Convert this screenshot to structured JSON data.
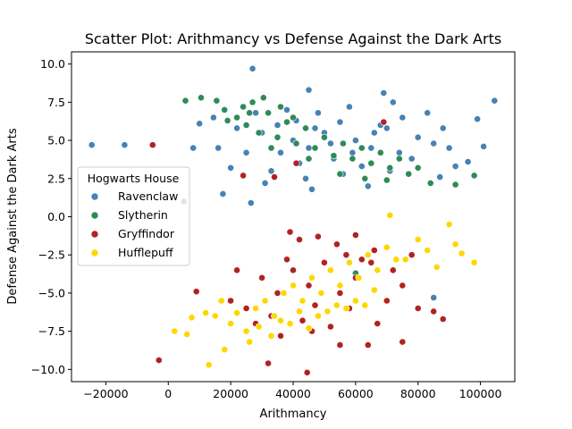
{
  "chart_data": {
    "type": "scatter",
    "title": "Scatter Plot: Arithmancy vs Defense Against the Dark Arts",
    "xlabel": "Arithmancy",
    "ylabel": "Defense Against the Dark Arts",
    "xlim": [
      -31000,
      111000
    ],
    "ylim": [
      -10.8,
      10.8
    ],
    "x_ticks": [
      -20000,
      0,
      20000,
      40000,
      60000,
      80000,
      100000
    ],
    "x_tick_labels": [
      "−20000",
      "0",
      "20000",
      "40000",
      "60000",
      "80000",
      "100000"
    ],
    "y_ticks": [
      -10.0,
      -7.5,
      -5.0,
      -2.5,
      0.0,
      2.5,
      5.0,
      7.5,
      10.0
    ],
    "y_tick_labels": [
      "−10.0",
      "−7.5",
      "−5.0",
      "−2.5",
      "0.0",
      "2.5",
      "5.0",
      "7.5",
      "10.0"
    ],
    "grid": false,
    "legend": {
      "title": "Hogwarts House",
      "placement": "center-left"
    },
    "series": [
      {
        "name": "Ravenclaw",
        "color": "#4682b4",
        "points": [
          [
            -24500,
            4.7
          ],
          [
            -14000,
            4.7
          ],
          [
            27000,
            9.7
          ],
          [
            45000,
            8.3
          ],
          [
            104500,
            7.6
          ],
          [
            101000,
            4.6
          ],
          [
            99000,
            6.4
          ],
          [
            96000,
            3.6
          ],
          [
            17500,
            1.5
          ],
          [
            26500,
            0.9
          ],
          [
            14500,
            6.5
          ],
          [
            10000,
            6.1
          ],
          [
            8000,
            4.5
          ],
          [
            5000,
            1.0
          ],
          [
            92000,
            3.3
          ],
          [
            30000,
            5.5
          ],
          [
            35000,
            6.0
          ],
          [
            40000,
            5.0
          ],
          [
            45000,
            4.5
          ],
          [
            50000,
            5.5
          ],
          [
            55000,
            6.2
          ],
          [
            60000,
            5.0
          ],
          [
            65000,
            4.5
          ],
          [
            70000,
            5.8
          ],
          [
            75000,
            6.5
          ],
          [
            80000,
            5.2
          ],
          [
            85000,
            4.8
          ],
          [
            88000,
            5.8
          ],
          [
            25000,
            4.2
          ],
          [
            22000,
            5.8
          ],
          [
            38000,
            7.0
          ],
          [
            42000,
            3.5
          ],
          [
            48000,
            6.8
          ],
          [
            53000,
            3.8
          ],
          [
            58000,
            7.2
          ],
          [
            62000,
            3.3
          ],
          [
            68000,
            6.0
          ],
          [
            72000,
            7.5
          ],
          [
            78000,
            3.8
          ],
          [
            83000,
            6.8
          ],
          [
            33000,
            3.0
          ],
          [
            44000,
            2.5
          ],
          [
            56000,
            2.8
          ],
          [
            64000,
            2.0
          ],
          [
            87000,
            2.6
          ],
          [
            36000,
            4.2
          ],
          [
            47000,
            5.8
          ],
          [
            52000,
            4.8
          ],
          [
            66000,
            5.5
          ],
          [
            74000,
            4.2
          ],
          [
            28000,
            6.8
          ],
          [
            41000,
            6.3
          ],
          [
            59000,
            4.2
          ],
          [
            71000,
            3.0
          ],
          [
            16000,
            4.5
          ],
          [
            20000,
            3.2
          ],
          [
            90000,
            4.5
          ],
          [
            46000,
            1.8
          ],
          [
            69000,
            8.1
          ],
          [
            31000,
            2.2
          ],
          [
            85000,
            -5.3
          ]
        ]
      },
      {
        "name": "Slytherin",
        "color": "#2e8b57",
        "points": [
          [
            5500,
            7.6
          ],
          [
            10500,
            7.8
          ],
          [
            15500,
            7.6
          ],
          [
            27000,
            7.5
          ],
          [
            30500,
            7.8
          ],
          [
            18000,
            7.0
          ],
          [
            22000,
            6.5
          ],
          [
            25000,
            6.0
          ],
          [
            29000,
            5.5
          ],
          [
            32000,
            6.8
          ],
          [
            35000,
            5.2
          ],
          [
            38000,
            6.2
          ],
          [
            41000,
            4.8
          ],
          [
            44000,
            5.8
          ],
          [
            47000,
            4.5
          ],
          [
            50000,
            5.2
          ],
          [
            53000,
            4.0
          ],
          [
            56000,
            4.8
          ],
          [
            59000,
            3.8
          ],
          [
            62000,
            4.5
          ],
          [
            65000,
            3.5
          ],
          [
            68000,
            4.2
          ],
          [
            71000,
            3.2
          ],
          [
            74000,
            3.8
          ],
          [
            77000,
            2.8
          ],
          [
            80000,
            3.2
          ],
          [
            84000,
            2.2
          ],
          [
            92000,
            2.1
          ],
          [
            98000,
            2.7
          ],
          [
            33000,
            4.5
          ],
          [
            26000,
            6.8
          ],
          [
            36000,
            7.2
          ],
          [
            40000,
            6.5
          ],
          [
            45000,
            3.8
          ],
          [
            55000,
            2.8
          ],
          [
            63000,
            2.5
          ],
          [
            70000,
            2.4
          ],
          [
            24000,
            7.2
          ],
          [
            19000,
            6.3
          ],
          [
            60000,
            -3.7
          ]
        ]
      },
      {
        "name": "Gryffindor",
        "color": "#b22222",
        "points": [
          [
            -3000,
            -9.4
          ],
          [
            -5000,
            4.7
          ],
          [
            44500,
            -10.2
          ],
          [
            32000,
            -9.6
          ],
          [
            9000,
            -4.9
          ],
          [
            39000,
            -1.0
          ],
          [
            42000,
            -1.5
          ],
          [
            48000,
            -1.3
          ],
          [
            54000,
            -1.8
          ],
          [
            60000,
            -1.2
          ],
          [
            66000,
            -2.2
          ],
          [
            85000,
            -6.2
          ],
          [
            88000,
            -6.7
          ],
          [
            75000,
            -8.2
          ],
          [
            64000,
            -8.4
          ],
          [
            55000,
            -8.4
          ],
          [
            20000,
            -5.5
          ],
          [
            25000,
            -6.0
          ],
          [
            30000,
            -4.0
          ],
          [
            35000,
            -5.0
          ],
          [
            40000,
            -3.5
          ],
          [
            45000,
            -4.5
          ],
          [
            50000,
            -3.0
          ],
          [
            55000,
            -5.0
          ],
          [
            60000,
            -4.0
          ],
          [
            65000,
            -3.0
          ],
          [
            70000,
            -5.5
          ],
          [
            75000,
            -4.5
          ],
          [
            80000,
            -6.0
          ],
          [
            28000,
            -7.0
          ],
          [
            33000,
            -6.5
          ],
          [
            38000,
            -2.8
          ],
          [
            43000,
            -6.8
          ],
          [
            47000,
            -5.8
          ],
          [
            52000,
            -7.2
          ],
          [
            58000,
            -6.0
          ],
          [
            62000,
            -2.8
          ],
          [
            67000,
            -7.0
          ],
          [
            72000,
            -3.5
          ],
          [
            78000,
            -2.5
          ],
          [
            36000,
            -7.8
          ],
          [
            46000,
            -7.5
          ],
          [
            57000,
            -2.5
          ],
          [
            22000,
            -3.5
          ],
          [
            41000,
            3.5
          ],
          [
            34000,
            2.6
          ],
          [
            69000,
            6.2
          ],
          [
            24000,
            2.7
          ]
        ]
      },
      {
        "name": "Hufflepuff",
        "color": "#ffd700",
        "points": [
          [
            2000,
            -7.5
          ],
          [
            7500,
            -6.6
          ],
          [
            6000,
            -7.7
          ],
          [
            13000,
            -9.7
          ],
          [
            18000,
            -8.7
          ],
          [
            15000,
            -6.5
          ],
          [
            20000,
            -7.0
          ],
          [
            25000,
            -7.5
          ],
          [
            28000,
            -6.0
          ],
          [
            31000,
            -5.5
          ],
          [
            34000,
            -6.5
          ],
          [
            37000,
            -5.0
          ],
          [
            40000,
            -4.5
          ],
          [
            43000,
            -5.5
          ],
          [
            46000,
            -4.0
          ],
          [
            49000,
            -5.0
          ],
          [
            52000,
            -3.5
          ],
          [
            55000,
            -4.5
          ],
          [
            58000,
            -3.0
          ],
          [
            61000,
            -4.0
          ],
          [
            64000,
            -2.5
          ],
          [
            67000,
            -3.5
          ],
          [
            70000,
            -2.0
          ],
          [
            73000,
            -2.8
          ],
          [
            71000,
            0.1
          ],
          [
            80000,
            -1.5
          ],
          [
            90000,
            -0.5
          ],
          [
            92000,
            -1.8
          ],
          [
            98000,
            -3.0
          ],
          [
            86000,
            -3.3
          ],
          [
            22000,
            -6.3
          ],
          [
            26000,
            -8.2
          ],
          [
            29000,
            -7.2
          ],
          [
            33000,
            -7.8
          ],
          [
            36000,
            -6.8
          ],
          [
            39000,
            -7.0
          ],
          [
            42000,
            -6.2
          ],
          [
            45000,
            -7.3
          ],
          [
            48000,
            -6.5
          ],
          [
            51000,
            -6.2
          ],
          [
            54000,
            -5.8
          ],
          [
            57000,
            -6.0
          ],
          [
            60000,
            -5.5
          ],
          [
            63000,
            -5.8
          ],
          [
            66000,
            -4.8
          ],
          [
            12000,
            -6.3
          ],
          [
            17000,
            -5.5
          ],
          [
            76000,
            -2.8
          ],
          [
            83000,
            -2.2
          ],
          [
            94000,
            -2.4
          ]
        ]
      }
    ]
  }
}
